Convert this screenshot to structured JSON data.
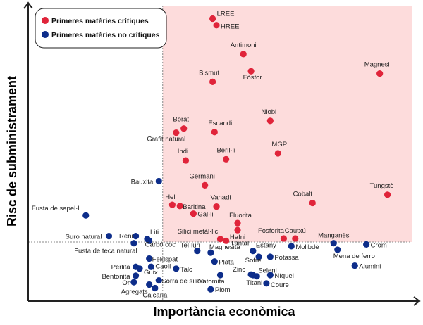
{
  "chart_data": {
    "type": "scatter",
    "title": "",
    "xlabel": "Importància econòmica",
    "ylabel": "Risc de subministrament",
    "xlim": [
      0,
      10
    ],
    "ylim": [
      0,
      5
    ],
    "thresholds": {
      "x": 3.5,
      "y": 1.0
    },
    "grid": false,
    "legend_position": "top-left",
    "colors": {
      "critical": "#e0243a",
      "noncritical": "#0d2d8a",
      "critical_zone": "#fddcdc",
      "axis": "#222222",
      "threshold_line": "#888888"
    },
    "series": [
      {
        "name": "Primeres matèries crítiques",
        "key": "critical",
        "points": [
          {
            "label": "LREE",
            "x": 4.8,
            "y": 4.78
          },
          {
            "label": "HREE",
            "x": 4.9,
            "y": 4.67
          },
          {
            "label": "Antimoni",
            "x": 5.6,
            "y": 4.18
          },
          {
            "label": "Fòsfor",
            "x": 5.8,
            "y": 3.89
          },
          {
            "label": "Magnesi",
            "x": 9.15,
            "y": 3.85
          },
          {
            "label": "Bismut",
            "x": 4.8,
            "y": 3.71
          },
          {
            "label": "Niobi",
            "x": 6.3,
            "y": 3.05
          },
          {
            "label": "Borat",
            "x": 4.05,
            "y": 2.92
          },
          {
            "label": "Escandi",
            "x": 4.85,
            "y": 2.86
          },
          {
            "label": "Grafit natural",
            "x": 3.85,
            "y": 2.85
          },
          {
            "label": "MGP",
            "x": 6.5,
            "y": 2.5
          },
          {
            "label": "Beril·li",
            "x": 5.15,
            "y": 2.4
          },
          {
            "label": "Indi",
            "x": 4.1,
            "y": 2.38
          },
          {
            "label": "Germani",
            "x": 4.6,
            "y": 1.96
          },
          {
            "label": "Tungstè",
            "x": 9.35,
            "y": 1.8
          },
          {
            "label": "Cobalt",
            "x": 7.4,
            "y": 1.66
          },
          {
            "label": "Heli",
            "x": 3.75,
            "y": 1.63
          },
          {
            "label": "Baritina",
            "x": 3.95,
            "y": 1.61
          },
          {
            "label": "Vanadi",
            "x": 4.9,
            "y": 1.6
          },
          {
            "label": "Gal·li",
            "x": 4.3,
            "y": 1.48
          },
          {
            "label": "Fluorita",
            "x": 5.45,
            "y": 1.32
          },
          {
            "label": "Silici metàl·lic",
            "x": 5.0,
            "y": 1.05
          },
          {
            "label": "Hafni",
            "x": 5.45,
            "y": 1.2
          },
          {
            "label": "Fosforita",
            "x": 6.65,
            "y": 1.06
          },
          {
            "label": "Cautxú",
            "x": 6.95,
            "y": 1.06
          },
          {
            "label": "Tàntal",
            "x": 5.15,
            "y": 1.02
          }
        ]
      },
      {
        "name": "Primeres matèries no crítiques",
        "key": "noncritical",
        "points": [
          {
            "label": "Bauxita",
            "x": 3.4,
            "y": 2.03
          },
          {
            "label": "Fusta de sapel·li",
            "x": 1.5,
            "y": 1.45
          },
          {
            "label": "Suro natural",
            "x": 2.1,
            "y": 1.1
          },
          {
            "label": "Reni",
            "x": 2.8,
            "y": 1.1
          },
          {
            "label": "Liti",
            "x": 3.1,
            "y": 1.05
          },
          {
            "label": "Carbó coc",
            "x": 3.15,
            "y": 1.02
          },
          {
            "label": "Fusta de teca natural",
            "x": 2.75,
            "y": 0.98
          },
          {
            "label": "Feldspat",
            "x": 3.15,
            "y": 0.72
          },
          {
            "label": "Caolí",
            "x": 3.2,
            "y": 0.58
          },
          {
            "label": "Perlita",
            "x": 2.8,
            "y": 0.58
          },
          {
            "label": "Guix",
            "x": 2.9,
            "y": 0.55
          },
          {
            "label": "Bentonita",
            "x": 2.8,
            "y": 0.43
          },
          {
            "label": "Or",
            "x": 2.75,
            "y": 0.32
          },
          {
            "label": "Agregats",
            "x": 3.15,
            "y": 0.28
          },
          {
            "label": "Sorra de sílice",
            "x": 3.4,
            "y": 0.35
          },
          {
            "label": "Calcària",
            "x": 3.3,
            "y": 0.22
          },
          {
            "label": "Talc",
            "x": 3.85,
            "y": 0.55
          },
          {
            "label": "Tel·luri",
            "x": 4.4,
            "y": 0.85
          },
          {
            "label": "Magnesita",
            "x": 4.75,
            "y": 0.82
          },
          {
            "label": "Plata",
            "x": 4.85,
            "y": 0.67
          },
          {
            "label": "Diatomita",
            "x": 5.0,
            "y": 0.44
          },
          {
            "label": "Plom",
            "x": 4.75,
            "y": 0.2
          },
          {
            "label": "Estany",
            "x": 5.85,
            "y": 0.85
          },
          {
            "label": "Sofre",
            "x": 6.0,
            "y": 0.75
          },
          {
            "label": "Potassa",
            "x": 6.3,
            "y": 0.75
          },
          {
            "label": "Zinc",
            "x": 5.8,
            "y": 0.45
          },
          {
            "label": "Seleni",
            "x": 5.95,
            "y": 0.42
          },
          {
            "label": "Titani",
            "x": 5.85,
            "y": 0.44
          },
          {
            "label": "Níquel",
            "x": 6.3,
            "y": 0.44
          },
          {
            "label": "Coure",
            "x": 6.2,
            "y": 0.3
          },
          {
            "label": "Molibdè",
            "x": 6.85,
            "y": 0.93
          },
          {
            "label": "Manganès",
            "x": 7.95,
            "y": 0.98
          },
          {
            "label": "Crom",
            "x": 8.8,
            "y": 0.96
          },
          {
            "label": "Mena de ferro",
            "x": 8.05,
            "y": 0.87
          },
          {
            "label": "Alumini",
            "x": 8.5,
            "y": 0.6
          }
        ]
      }
    ]
  }
}
